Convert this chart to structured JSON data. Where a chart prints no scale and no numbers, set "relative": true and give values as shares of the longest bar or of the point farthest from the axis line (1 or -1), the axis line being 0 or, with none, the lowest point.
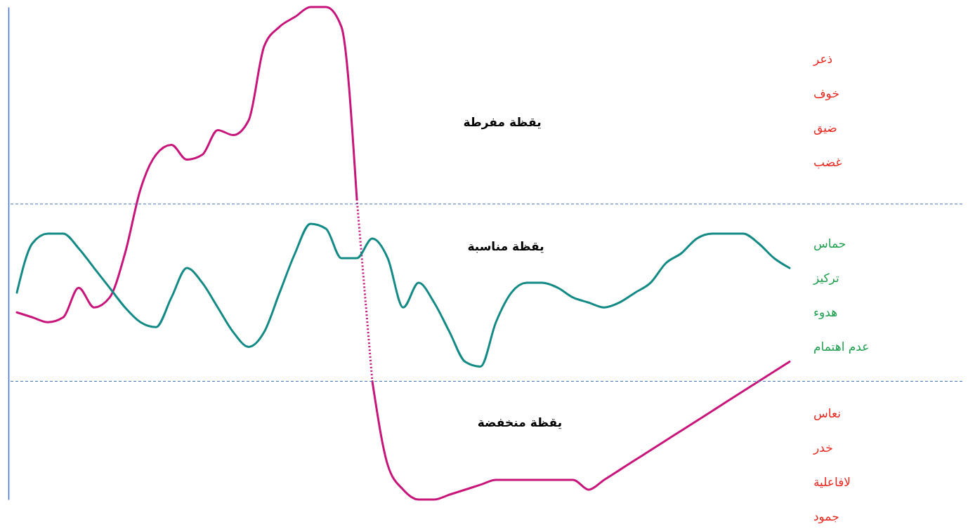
{
  "chart_data": {
    "type": "line",
    "relative": true,
    "categories": [
      null,
      null,
      null,
      null,
      null,
      null,
      null,
      null,
      null,
      null,
      null,
      null,
      null,
      null,
      null,
      null,
      null,
      null,
      null,
      null,
      null,
      null,
      null,
      null,
      null,
      null,
      null,
      null,
      null,
      null,
      null,
      null,
      null,
      null,
      null,
      null,
      null,
      null,
      null,
      null,
      null,
      null,
      null,
      null,
      null,
      null,
      null,
      null,
      null,
      null,
      null,
      null
    ],
    "series": [
      {
        "color": "#c8157a",
        "line_style": "solid",
        "values": [
          0.38,
          0.37,
          0.36,
          0.37,
          0.43,
          0.39,
          0.41,
          0.5,
          0.63,
          0.7,
          0.72,
          0.69,
          0.7,
          0.75,
          0.74,
          0.77,
          0.92,
          0.96,
          0.98,
          1.0,
          1.0,
          0.96,
          0.61,
          null,
          null,
          null,
          null,
          null,
          null,
          null,
          null,
          null,
          null,
          null,
          null,
          null,
          null,
          null,
          null,
          null,
          null,
          null,
          null,
          null,
          null,
          null,
          null,
          null,
          null,
          null,
          null,
          null
        ]
      },
      {
        "color": "#c8157a",
        "line_style": "dotted",
        "values": [
          null,
          null,
          null,
          null,
          null,
          null,
          null,
          null,
          null,
          null,
          null,
          null,
          null,
          null,
          null,
          null,
          null,
          null,
          null,
          null,
          null,
          null,
          0.61,
          0.24,
          null,
          null,
          null,
          null,
          null,
          null,
          null,
          null,
          null,
          null,
          null,
          null,
          null,
          null,
          null,
          null,
          null,
          null,
          null,
          null,
          null,
          null,
          null,
          null,
          null,
          null,
          null,
          null
        ]
      },
      {
        "color": "#c8157a",
        "line_style": "solid",
        "values": [
          null,
          null,
          null,
          null,
          null,
          null,
          null,
          null,
          null,
          null,
          null,
          null,
          null,
          null,
          null,
          null,
          null,
          null,
          null,
          null,
          null,
          null,
          null,
          0.24,
          0.07,
          0.02,
          0,
          0,
          0.01,
          0.02,
          0.03,
          0.04,
          0.04,
          0.04,
          0.04,
          0.04,
          0.04,
          0.02,
          0.04,
          0.06,
          0.08,
          0.1,
          0.12,
          0.14,
          0.16,
          0.18,
          0.2,
          0.22,
          0.24,
          0.26,
          0.28,
          null
        ]
      },
      {
        "color": "#138a84",
        "line_style": "solid",
        "values": [
          0.42,
          0.52,
          0.54,
          0.54,
          0.51,
          0.47,
          0.43,
          0.39,
          0.36,
          0.35,
          0.41,
          0.47,
          0.44,
          0.39,
          0.34,
          0.31,
          0.34,
          0.42,
          0.5,
          0.56,
          0.55,
          0.49,
          0.49,
          0.53,
          0.49,
          0.39,
          0.44,
          0.4,
          0.34,
          0.28,
          0.27,
          0.36,
          0.42,
          0.44,
          0.44,
          0.43,
          0.41,
          0.4,
          0.39,
          0.4,
          0.42,
          0.44,
          0.48,
          0.5,
          0.53,
          0.54,
          0.54,
          0.54,
          0.52,
          0.49,
          0.47,
          null
        ]
      }
    ],
    "ref_lines": [
      {
        "axis": "y",
        "value": 0.6,
        "color": "#4472c4",
        "line_style": "dashed"
      },
      {
        "axis": "y",
        "value": 0.24,
        "color": "#4472c4",
        "line_style": "dashed"
      }
    ],
    "annotations": [
      "يقظة مفرطة",
      "يقظة مناسبة",
      "يقظة منخفضة",
      "ذعر",
      "خوف",
      "ضيق",
      "غضب",
      "حماس",
      "تركيز",
      "هدوء",
      "عدم اهتمام",
      "نعاس",
      "خدر",
      "لافاعلية",
      "جمود"
    ]
  }
}
